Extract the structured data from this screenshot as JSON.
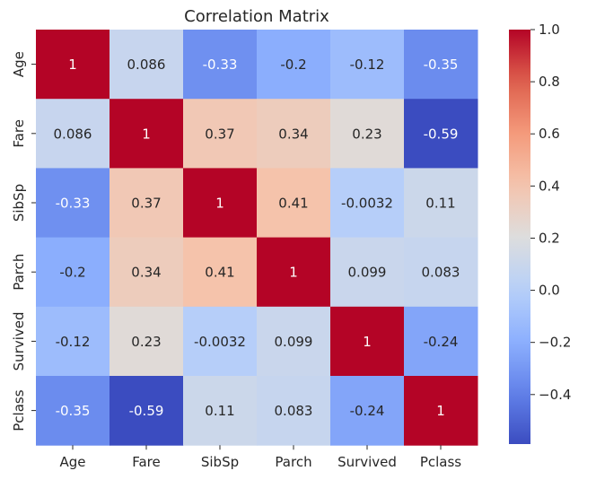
{
  "chart_data": {
    "type": "heatmap",
    "title": "Correlation Matrix",
    "xlabel": "",
    "ylabel": "",
    "x_categories": [
      "Age",
      "Fare",
      "SibSp",
      "Parch",
      "Survived",
      "Pclass"
    ],
    "y_categories": [
      "Age",
      "Fare",
      "SibSp",
      "Parch",
      "Survived",
      "Pclass"
    ],
    "values": [
      [
        1,
        0.086,
        -0.33,
        -0.2,
        -0.12,
        -0.35
      ],
      [
        0.086,
        1,
        0.37,
        0.34,
        0.23,
        -0.59
      ],
      [
        -0.33,
        0.37,
        1,
        0.41,
        -0.0032,
        0.11
      ],
      [
        -0.2,
        0.34,
        0.41,
        1,
        0.099,
        0.083
      ],
      [
        -0.12,
        0.23,
        -0.0032,
        0.099,
        1,
        -0.24
      ],
      [
        -0.35,
        -0.59,
        0.11,
        0.083,
        -0.24,
        1
      ]
    ],
    "cell_labels": [
      [
        "1",
        "0.086",
        "-0.33",
        "-0.2",
        "-0.12",
        "-0.35"
      ],
      [
        "0.086",
        "1",
        "0.37",
        "0.34",
        "0.23",
        "-0.59"
      ],
      [
        "-0.33",
        "0.37",
        "1",
        "0.41",
        "-0.0032",
        "0.11"
      ],
      [
        "-0.2",
        "0.34",
        "0.41",
        "1",
        "0.099",
        "0.083"
      ],
      [
        "-0.12",
        "0.23",
        "-0.0032",
        "0.099",
        "1",
        "-0.24"
      ],
      [
        "-0.35",
        "-0.59",
        "0.11",
        "0.083",
        "-0.24",
        "1"
      ]
    ],
    "colormap": "coolwarm",
    "vmin": -0.59,
    "vmax": 1,
    "colorbar_ticks": [
      1.0,
      0.8,
      0.6,
      0.4,
      0.2,
      0.0,
      -0.2,
      -0.4
    ],
    "colorbar_tick_labels": [
      "1.0",
      "0.8",
      "0.6",
      "0.4",
      "0.2",
      "0.0",
      "−0.2",
      "−0.4"
    ],
    "colors": {
      "low": "#3b4cc0",
      "mid": "#dddddd",
      "high": "#b40426",
      "text_dark": "#262626",
      "text_light": "#ffffff"
    }
  }
}
